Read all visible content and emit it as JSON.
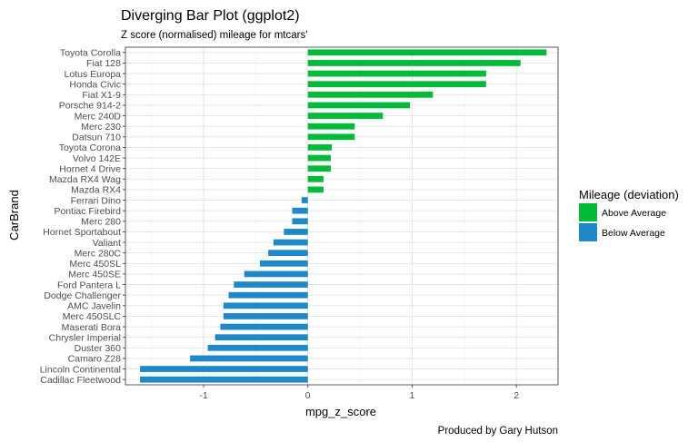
{
  "chart_data": {
    "type": "bar",
    "orientation": "horizontal",
    "title": "Diverging Bar Plot (ggplot2)",
    "subtitle": "Z score (normalised) mileage for mtcars'",
    "xlabel": "mpg_z_score",
    "ylabel": "CarBrand",
    "caption": "Produced by Gary Hutson",
    "xlim": [
      -1.75,
      2.4
    ],
    "xticks": [
      -1,
      0,
      1,
      2
    ],
    "grid": true,
    "legend": {
      "title": "Mileage (deviation)",
      "position": "right",
      "entries": [
        {
          "label": "Above Average",
          "color": "#00BA38"
        },
        {
          "label": "Below Average",
          "color": "#1E88C8"
        }
      ]
    },
    "categories": [
      "Toyota Corolla",
      "Fiat 128",
      "Lotus Europa",
      "Honda Civic",
      "Fiat X1-9",
      "Porsche 914-2",
      "Merc 240D",
      "Merc 230",
      "Datsun 710",
      "Toyota Corona",
      "Volvo 142E",
      "Hornet 4 Drive",
      "Mazda RX4 Wag",
      "Mazda RX4",
      "Ferrari Dino",
      "Pontiac Firebird",
      "Merc 280",
      "Hornet Sportabout",
      "Valiant",
      "Merc 280C",
      "Merc 450SL",
      "Merc 450SE",
      "Ford Pantera L",
      "Dodge Challenger",
      "AMC Javelin",
      "Merc 450SLC",
      "Maserati Bora",
      "Chrysler Imperial",
      "Duster 360",
      "Camaro Z28",
      "Lincoln Continental",
      "Cadillac Fleetwood"
    ],
    "values": [
      2.29,
      2.04,
      1.71,
      1.71,
      1.2,
      0.98,
      0.72,
      0.45,
      0.45,
      0.23,
      0.22,
      0.22,
      0.15,
      0.15,
      -0.06,
      -0.15,
      -0.15,
      -0.23,
      -0.33,
      -0.38,
      -0.46,
      -0.61,
      -0.71,
      -0.76,
      -0.81,
      -0.81,
      -0.84,
      -0.89,
      -0.96,
      -1.13,
      -1.61,
      -1.61
    ]
  }
}
